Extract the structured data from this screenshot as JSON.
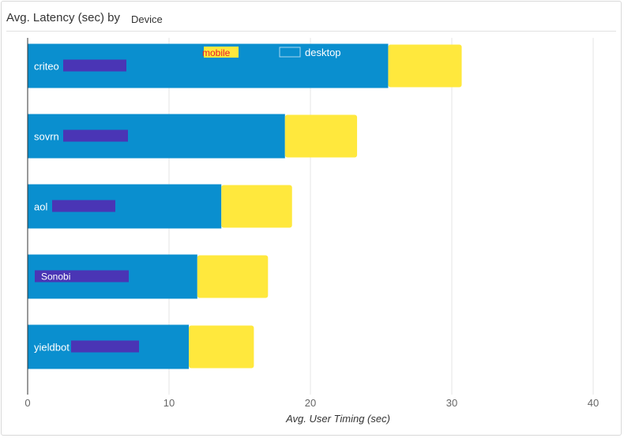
{
  "panel": {
    "title": "Avg. Latency (sec) by",
    "dimension": "Device"
  },
  "chart_data": {
    "type": "bar",
    "orientation": "horizontal",
    "stacked": true,
    "categories": [
      "criteo",
      "sovrn",
      "aol",
      "Sonobi",
      "yieldbot"
    ],
    "series": [
      {
        "name": "desktop",
        "values": [
          25.5,
          18.2,
          13.7,
          12.0,
          11.4
        ],
        "color": "#0a8fcf"
      },
      {
        "name": "mobile",
        "values": [
          5.2,
          5.1,
          5.0,
          5.0,
          4.6
        ],
        "color": "#ffe83d"
      }
    ],
    "xlabel": "Avg. User Timing (sec)",
    "xlim": [
      0,
      40
    ],
    "xticks": [
      0,
      10,
      20,
      30,
      40
    ],
    "grid": true,
    "legend_position": "top",
    "colors": {
      "grid": "#e6e6e6",
      "axis": "#333333",
      "tick_label": "#666666",
      "redaction": "#4a35b5",
      "mobile_legend_text": "#e8202b"
    }
  }
}
